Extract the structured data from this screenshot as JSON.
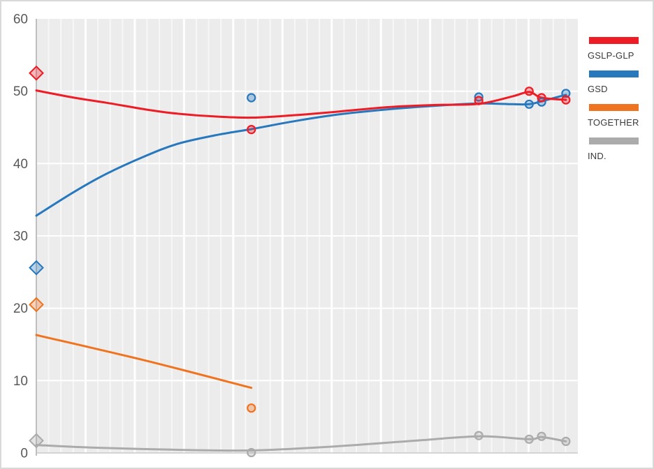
{
  "chart_data": {
    "type": "line",
    "title": "",
    "xlabel": "",
    "ylabel": "",
    "ylim": [
      0,
      60
    ],
    "yticks": [
      0,
      10,
      20,
      30,
      40,
      50,
      60
    ],
    "x_range": [
      0,
      1
    ],
    "x_tick_labels_visible": false,
    "grid": true,
    "legend_position": "right",
    "plot_bg_color": "#ececec",
    "grid_color": "#ffffff",
    "axis_line_color": "#bfbfbf",
    "tick_label_color": "#595959",
    "x_gridline_intervals": 44,
    "series": [
      {
        "name": "IND.",
        "color": "#ababab",
        "diamond_value": 1.7,
        "trend": [
          [
            0,
            1.1
          ],
          [
            0.1,
            0.75
          ],
          [
            0.25,
            0.45
          ],
          [
            0.397,
            0.35
          ],
          [
            0.55,
            0.9
          ],
          [
            0.7,
            1.7
          ],
          [
            0.817,
            2.3
          ],
          [
            0.91,
            1.9
          ],
          [
            0.933,
            2.2
          ],
          [
            0.978,
            1.6
          ]
        ],
        "points": [
          [
            0.397,
            0.05
          ],
          [
            0.817,
            2.4
          ],
          [
            0.91,
            1.9
          ],
          [
            0.933,
            2.3
          ],
          [
            0.978,
            1.6
          ]
        ]
      },
      {
        "name": "TOGETHER",
        "color": "#f07320",
        "diamond_value": 20.5,
        "trend": [
          [
            0,
            16.3
          ],
          [
            0.2,
            12.8
          ],
          [
            0.397,
            9.0
          ]
        ],
        "points": [
          [
            0.397,
            6.2
          ]
        ]
      },
      {
        "name": "GSD",
        "color": "#2878be",
        "diamond_value": 25.6,
        "trend": [
          [
            0,
            32.8
          ],
          [
            0.07,
            36.1
          ],
          [
            0.13,
            38.6
          ],
          [
            0.2,
            41.0
          ],
          [
            0.26,
            42.7
          ],
          [
            0.33,
            43.9
          ],
          [
            0.4,
            44.8
          ],
          [
            0.48,
            45.9
          ],
          [
            0.56,
            46.8
          ],
          [
            0.65,
            47.5
          ],
          [
            0.74,
            48.0
          ],
          [
            0.817,
            48.3
          ],
          [
            0.88,
            48.2
          ],
          [
            0.91,
            48.2
          ],
          [
            0.933,
            48.6
          ],
          [
            0.978,
            49.5
          ]
        ],
        "points": [
          [
            0.397,
            49.1
          ],
          [
            0.817,
            49.2
          ],
          [
            0.91,
            48.2
          ],
          [
            0.933,
            48.5
          ],
          [
            0.978,
            49.7
          ]
        ]
      },
      {
        "name": "GSLP-GLP",
        "color": "#ee1c25",
        "diamond_value": 52.5,
        "trend": [
          [
            0,
            50.1
          ],
          [
            0.07,
            49.1
          ],
          [
            0.13,
            48.4
          ],
          [
            0.2,
            47.5
          ],
          [
            0.26,
            46.9
          ],
          [
            0.33,
            46.5
          ],
          [
            0.4,
            46.35
          ],
          [
            0.48,
            46.7
          ],
          [
            0.56,
            47.2
          ],
          [
            0.65,
            47.8
          ],
          [
            0.74,
            48.1
          ],
          [
            0.817,
            48.25
          ],
          [
            0.88,
            49.3
          ],
          [
            0.91,
            49.9
          ],
          [
            0.933,
            49.1
          ],
          [
            0.978,
            48.8
          ]
        ],
        "points": [
          [
            0.397,
            44.7
          ],
          [
            0.817,
            48.7
          ],
          [
            0.91,
            50.0
          ],
          [
            0.933,
            49.1
          ],
          [
            0.978,
            48.8
          ]
        ]
      }
    ]
  },
  "legend": {
    "items": [
      {
        "label": "GSLP-GLP",
        "color": "#ee1c25"
      },
      {
        "label": "GSD",
        "color": "#2878be"
      },
      {
        "label": "TOGETHER",
        "color": "#f07320"
      },
      {
        "label": "IND.",
        "color": "#ababab"
      }
    ]
  }
}
